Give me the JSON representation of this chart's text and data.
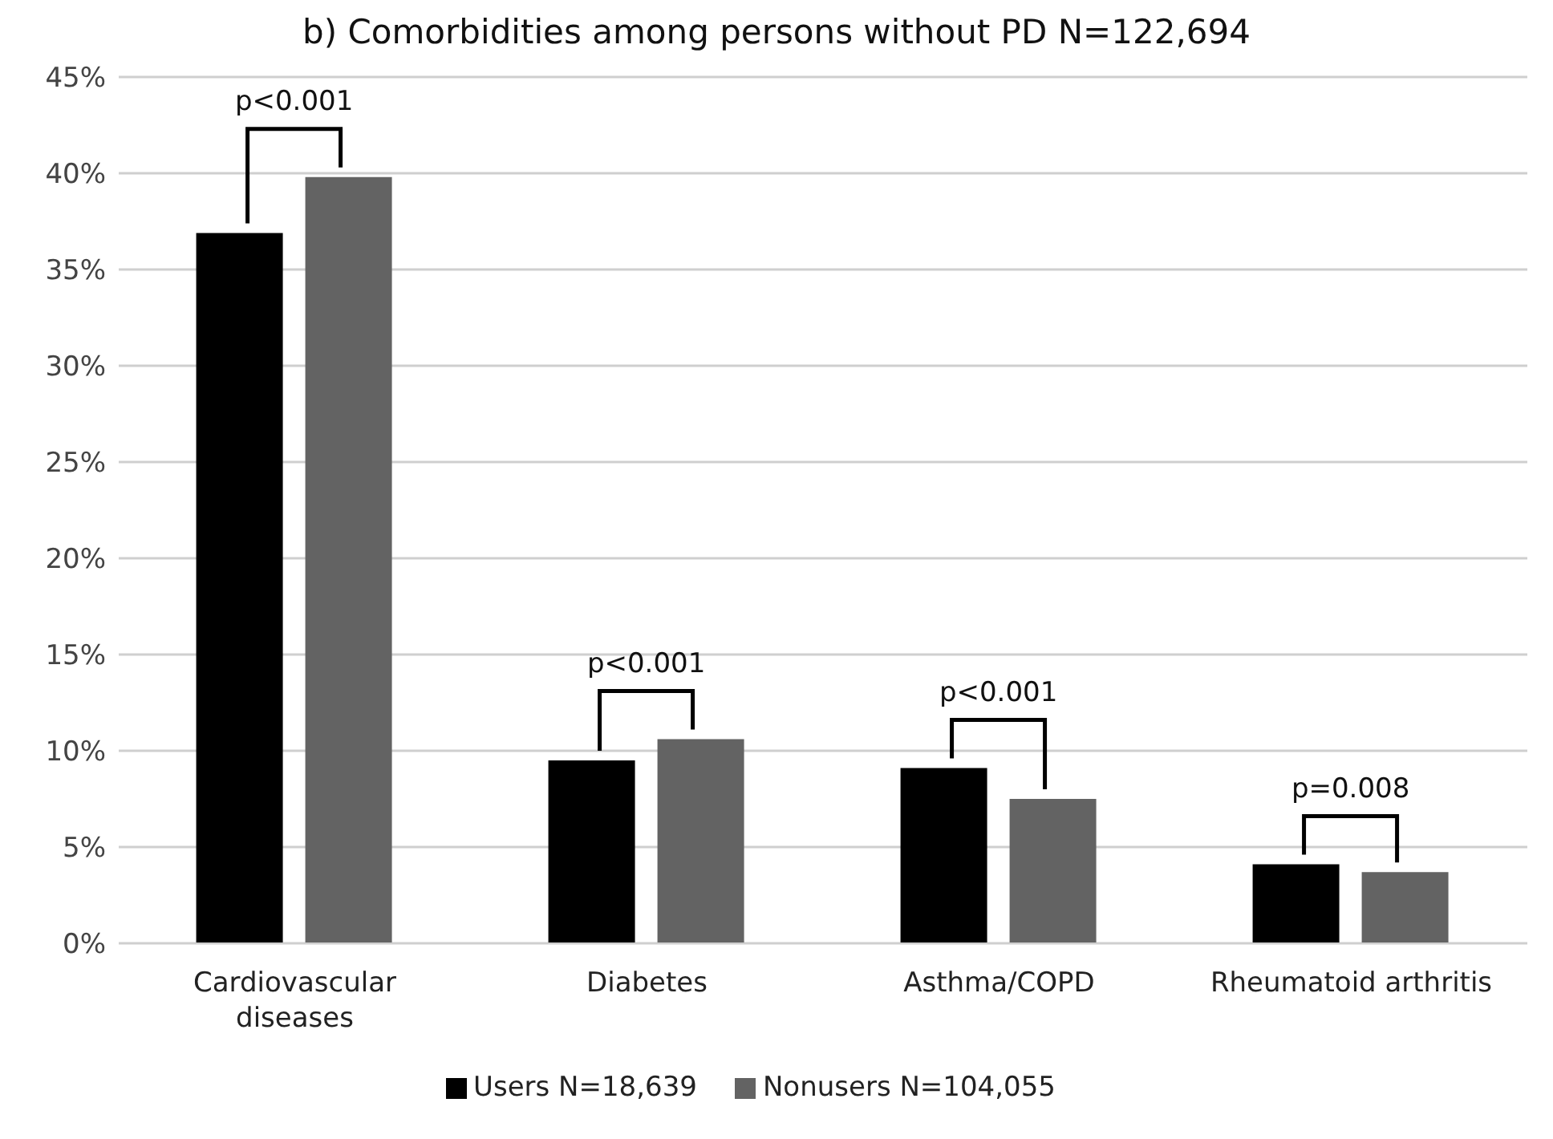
{
  "chart_data": {
    "type": "bar",
    "title": "b) Comorbidities among persons without PD N=122,694",
    "categories": [
      "Cardiovascular diseases",
      "Diabetes",
      "Asthma/COPD",
      "Rheumatoid arthritis"
    ],
    "series": [
      {
        "name": "Users N=18,639",
        "color": "#000000",
        "values": [
          36.9,
          9.5,
          9.1,
          4.1
        ]
      },
      {
        "name": "Nonusers N=104,055",
        "color": "#636363",
        "values": [
          39.8,
          10.6,
          7.5,
          3.7
        ]
      }
    ],
    "ylim": [
      0,
      45
    ],
    "yticks": [
      {
        "value": 0,
        "label": "0%"
      },
      {
        "value": 5,
        "label": "5%"
      },
      {
        "value": 10,
        "label": "10%"
      },
      {
        "value": 15,
        "label": "15%"
      },
      {
        "value": 20,
        "label": "20%"
      },
      {
        "value": 25,
        "label": "25%"
      },
      {
        "value": 30,
        "label": "30%"
      },
      {
        "value": 35,
        "label": "35%"
      },
      {
        "value": 40,
        "label": "40%"
      },
      {
        "value": 45,
        "label": "45%"
      }
    ],
    "grid": "y",
    "legend": "bottom",
    "annotations": [
      "p<0.001",
      "p<0.001",
      "p<0.001",
      "p=0.008"
    ]
  }
}
